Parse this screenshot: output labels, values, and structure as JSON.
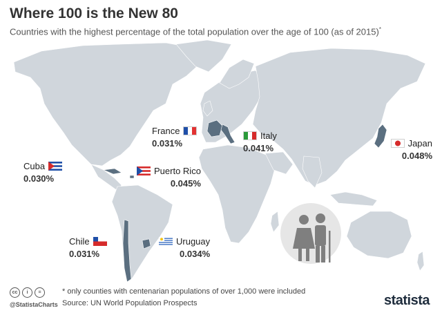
{
  "header": {
    "title": "Where 100 is the New 80",
    "subtitle": "Countries with the highest percentage of the total population over the age of 100 (as of 2015)",
    "subtitle_mark": "*"
  },
  "chart_data": {
    "type": "map",
    "title": "Where 100 is the New 80",
    "subtitle": "Countries with the highest percentage of the total population over the age of 100 (as of 2015)*",
    "unit": "%",
    "series": [
      {
        "country": "Japan",
        "value": 0.048,
        "label": "0.048%"
      },
      {
        "country": "Puerto Rico",
        "value": 0.045,
        "label": "0.045%"
      },
      {
        "country": "Italy",
        "value": 0.041,
        "label": "0.041%"
      },
      {
        "country": "Uruguay",
        "value": 0.034,
        "label": "0.034%"
      },
      {
        "country": "France",
        "value": 0.031,
        "label": "0.031%"
      },
      {
        "country": "Chile",
        "value": 0.031,
        "label": "0.031%"
      },
      {
        "country": "Cuba",
        "value": 0.03,
        "label": "0.030%"
      }
    ],
    "colors": {
      "land": "#d0d6dc",
      "highlight": "#5b6f80",
      "border": "#ffffff"
    }
  },
  "footer": {
    "footnote": "* only counties with centenarian populations of over 1,000 were included",
    "source": "Source: UN World Population Prospects",
    "handle": "@StatistaCharts",
    "brand": "statista",
    "cc_icons": [
      "cc",
      "i",
      "="
    ]
  }
}
